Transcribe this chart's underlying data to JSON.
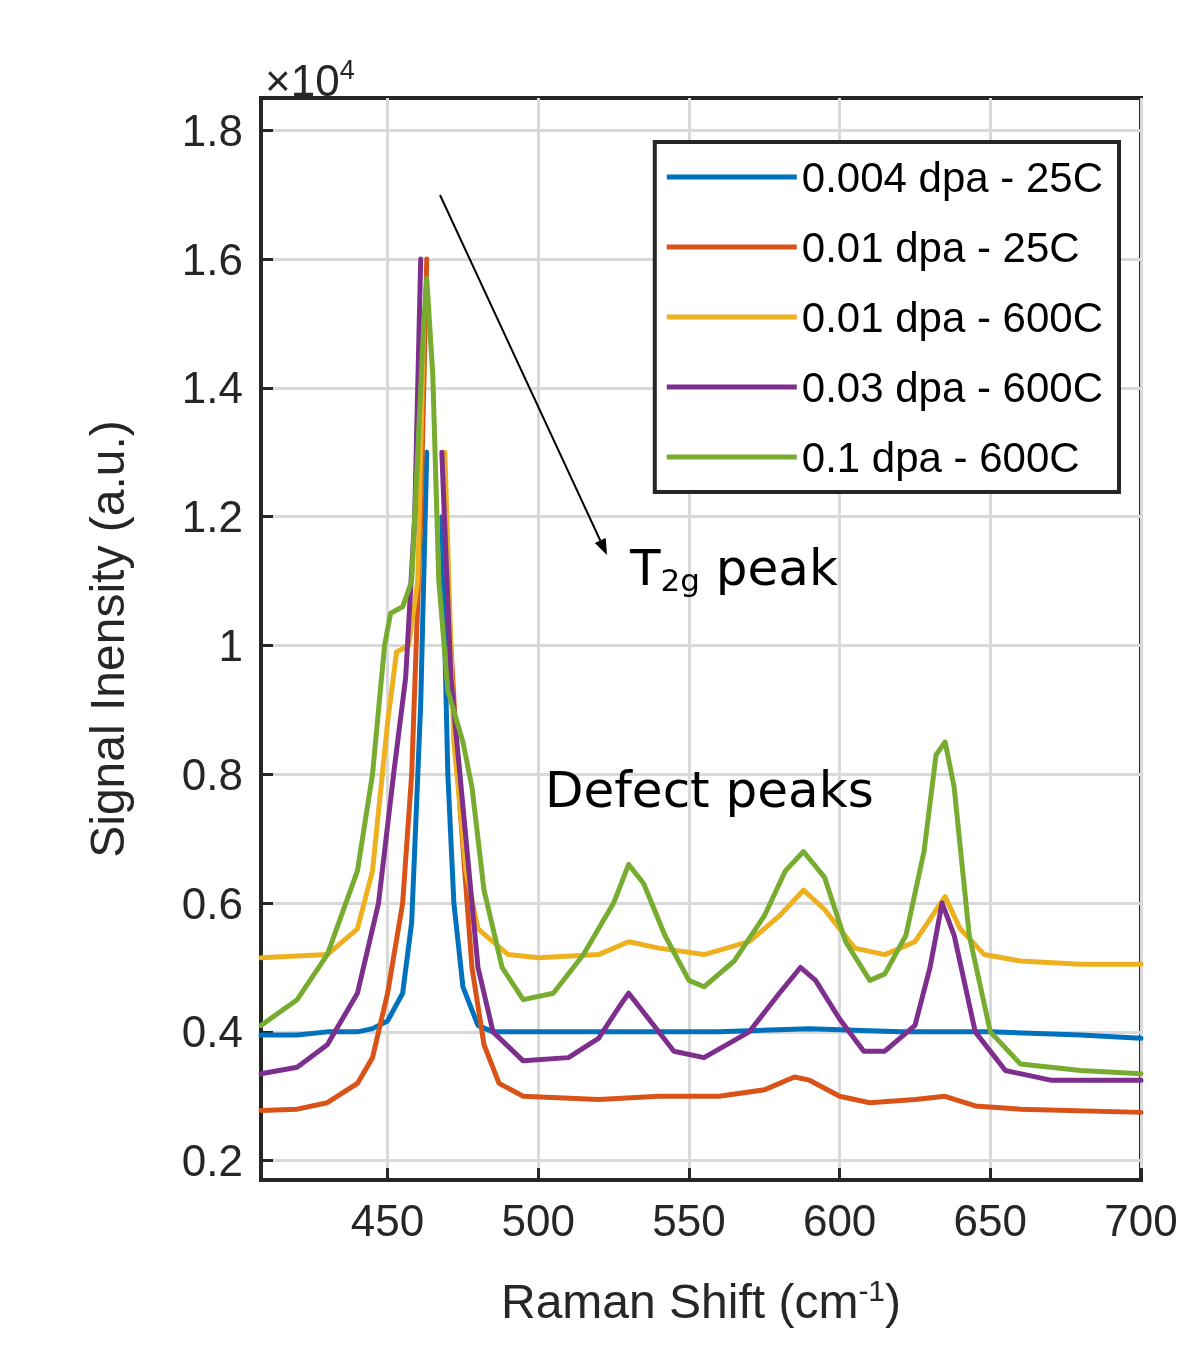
{
  "chart_data": {
    "type": "line",
    "xlabel": "Raman Shift (cm$^{-1}$)",
    "ylabel": "Signal Inensity (a.u.)",
    "annotations": [
      "×10$^{4}$",
      "T$_{2g}$ peak",
      "Defect peaks"
    ],
    "xlim": [
      408,
      700
    ],
    "xticks": [
      450,
      500,
      550,
      600,
      650,
      700
    ],
    "ylim": [
      0.17,
      1.85
    ],
    "yticks": [
      0.2,
      0.4,
      0.6,
      0.8,
      1,
      1.2,
      1.4,
      1.6,
      1.8
    ],
    "grid": true,
    "legend": "top right",
    "marker": "none",
    "line_style": "solid",
    "series": [
      {
        "name": "0.004 dpa - 25C",
        "color": "#0072bd",
        "x": [
          408,
          420,
          430,
          440,
          445,
          450,
          455,
          458,
          461,
          463,
          464.5,
          465,
          466.5,
          468,
          470,
          472,
          475,
          480,
          485,
          500,
          530,
          560,
          590,
          620,
          650,
          680,
          700
        ],
        "values": [
          0.395,
          0.395,
          0.4,
          0.4,
          0.405,
          0.417,
          0.46,
          0.57,
          0.91,
          1.3,
          null,
          null,
          null,
          1.2,
          0.8,
          0.6,
          0.47,
          0.41,
          0.4,
          0.4,
          0.4,
          0.4,
          0.405,
          0.4,
          0.4,
          0.395,
          0.39
        ]
      },
      {
        "name": "0.01 dpa - 25C",
        "color": "#d95319",
        "x": [
          408,
          420,
          430,
          440,
          445,
          450,
          455,
          458,
          461,
          463,
          464,
          466,
          469,
          471,
          474,
          478,
          482,
          487,
          495,
          520,
          540,
          560,
          575,
          585,
          590,
          600,
          610,
          625,
          635,
          645,
          660,
          700
        ],
        "values": [
          0.278,
          0.28,
          0.29,
          0.32,
          0.36,
          0.46,
          0.6,
          0.8,
          1.2,
          1.6,
          null,
          null,
          null,
          1.0,
          0.75,
          0.5,
          0.38,
          0.32,
          0.3,
          0.295,
          0.3,
          0.3,
          0.31,
          0.33,
          0.325,
          0.3,
          0.29,
          0.295,
          0.3,
          0.285,
          0.28,
          0.275
        ]
      },
      {
        "name": "0.01 dpa - 600C",
        "color": "#edb120",
        "x": [
          408,
          430,
          440,
          445,
          450,
          453,
          457,
          460,
          462,
          463,
          465,
          467,
          469,
          472,
          476,
          480,
          490,
          500,
          520,
          530,
          540,
          555,
          570,
          580,
          588,
          595,
          605,
          615,
          625,
          635,
          640,
          648,
          660,
          680,
          700
        ],
        "values": [
          0.515,
          0.52,
          0.56,
          0.65,
          0.88,
          0.99,
          1.0,
          1.1,
          1.5,
          null,
          null,
          null,
          1.3,
          0.85,
          0.65,
          0.56,
          0.52,
          0.515,
          0.52,
          0.54,
          0.53,
          0.52,
          0.54,
          0.58,
          0.62,
          0.59,
          0.53,
          0.52,
          0.54,
          0.61,
          0.56,
          0.52,
          0.51,
          0.505,
          0.505
        ]
      },
      {
        "name": "0.03 dpa - 600C",
        "color": "#7e2f8e",
        "x": [
          408,
          420,
          430,
          440,
          447,
          452,
          456,
          459,
          461,
          462,
          464,
          465.5,
          468,
          471,
          475,
          480,
          485,
          495,
          510,
          520,
          527,
          530,
          535,
          545,
          555,
          570,
          580,
          587,
          592,
          600,
          608,
          615,
          625,
          630,
          634,
          638,
          645,
          655,
          670,
          700
        ],
        "values": [
          0.335,
          0.345,
          0.38,
          0.46,
          0.6,
          0.8,
          0.95,
          1.2,
          1.6,
          null,
          null,
          null,
          1.3,
          0.95,
          0.75,
          0.5,
          0.4,
          0.355,
          0.36,
          0.39,
          0.44,
          0.46,
          0.43,
          0.37,
          0.36,
          0.4,
          0.46,
          0.5,
          0.48,
          0.42,
          0.37,
          0.37,
          0.41,
          0.5,
          0.6,
          0.55,
          0.4,
          0.34,
          0.325,
          0.325
        ]
      },
      {
        "name": "0.1 dpa - 600C",
        "color": "#77ac30",
        "x": [
          408,
          420,
          430,
          440,
          445,
          449,
          451,
          455,
          458,
          460,
          462,
          463,
          465,
          467,
          470,
          475,
          478,
          482,
          488,
          495,
          505,
          515,
          525,
          530,
          535,
          542,
          550,
          555,
          565,
          575,
          582,
          588,
          595,
          602,
          610,
          615,
          622,
          628,
          632,
          635,
          638,
          643,
          650,
          660,
          680,
          700
        ],
        "values": [
          0.41,
          0.45,
          0.52,
          0.65,
          0.8,
          1.0,
          1.05,
          1.06,
          1.1,
          1.3,
          1.5,
          1.57,
          1.42,
          1.1,
          0.93,
          0.85,
          0.78,
          0.62,
          0.5,
          0.45,
          0.46,
          0.52,
          0.6,
          0.66,
          0.63,
          0.55,
          0.48,
          0.47,
          0.51,
          0.58,
          0.65,
          0.68,
          0.64,
          0.54,
          0.48,
          0.49,
          0.55,
          0.68,
          0.83,
          0.85,
          0.78,
          0.55,
          0.4,
          0.35,
          0.34,
          0.335
        ]
      }
    ]
  }
}
